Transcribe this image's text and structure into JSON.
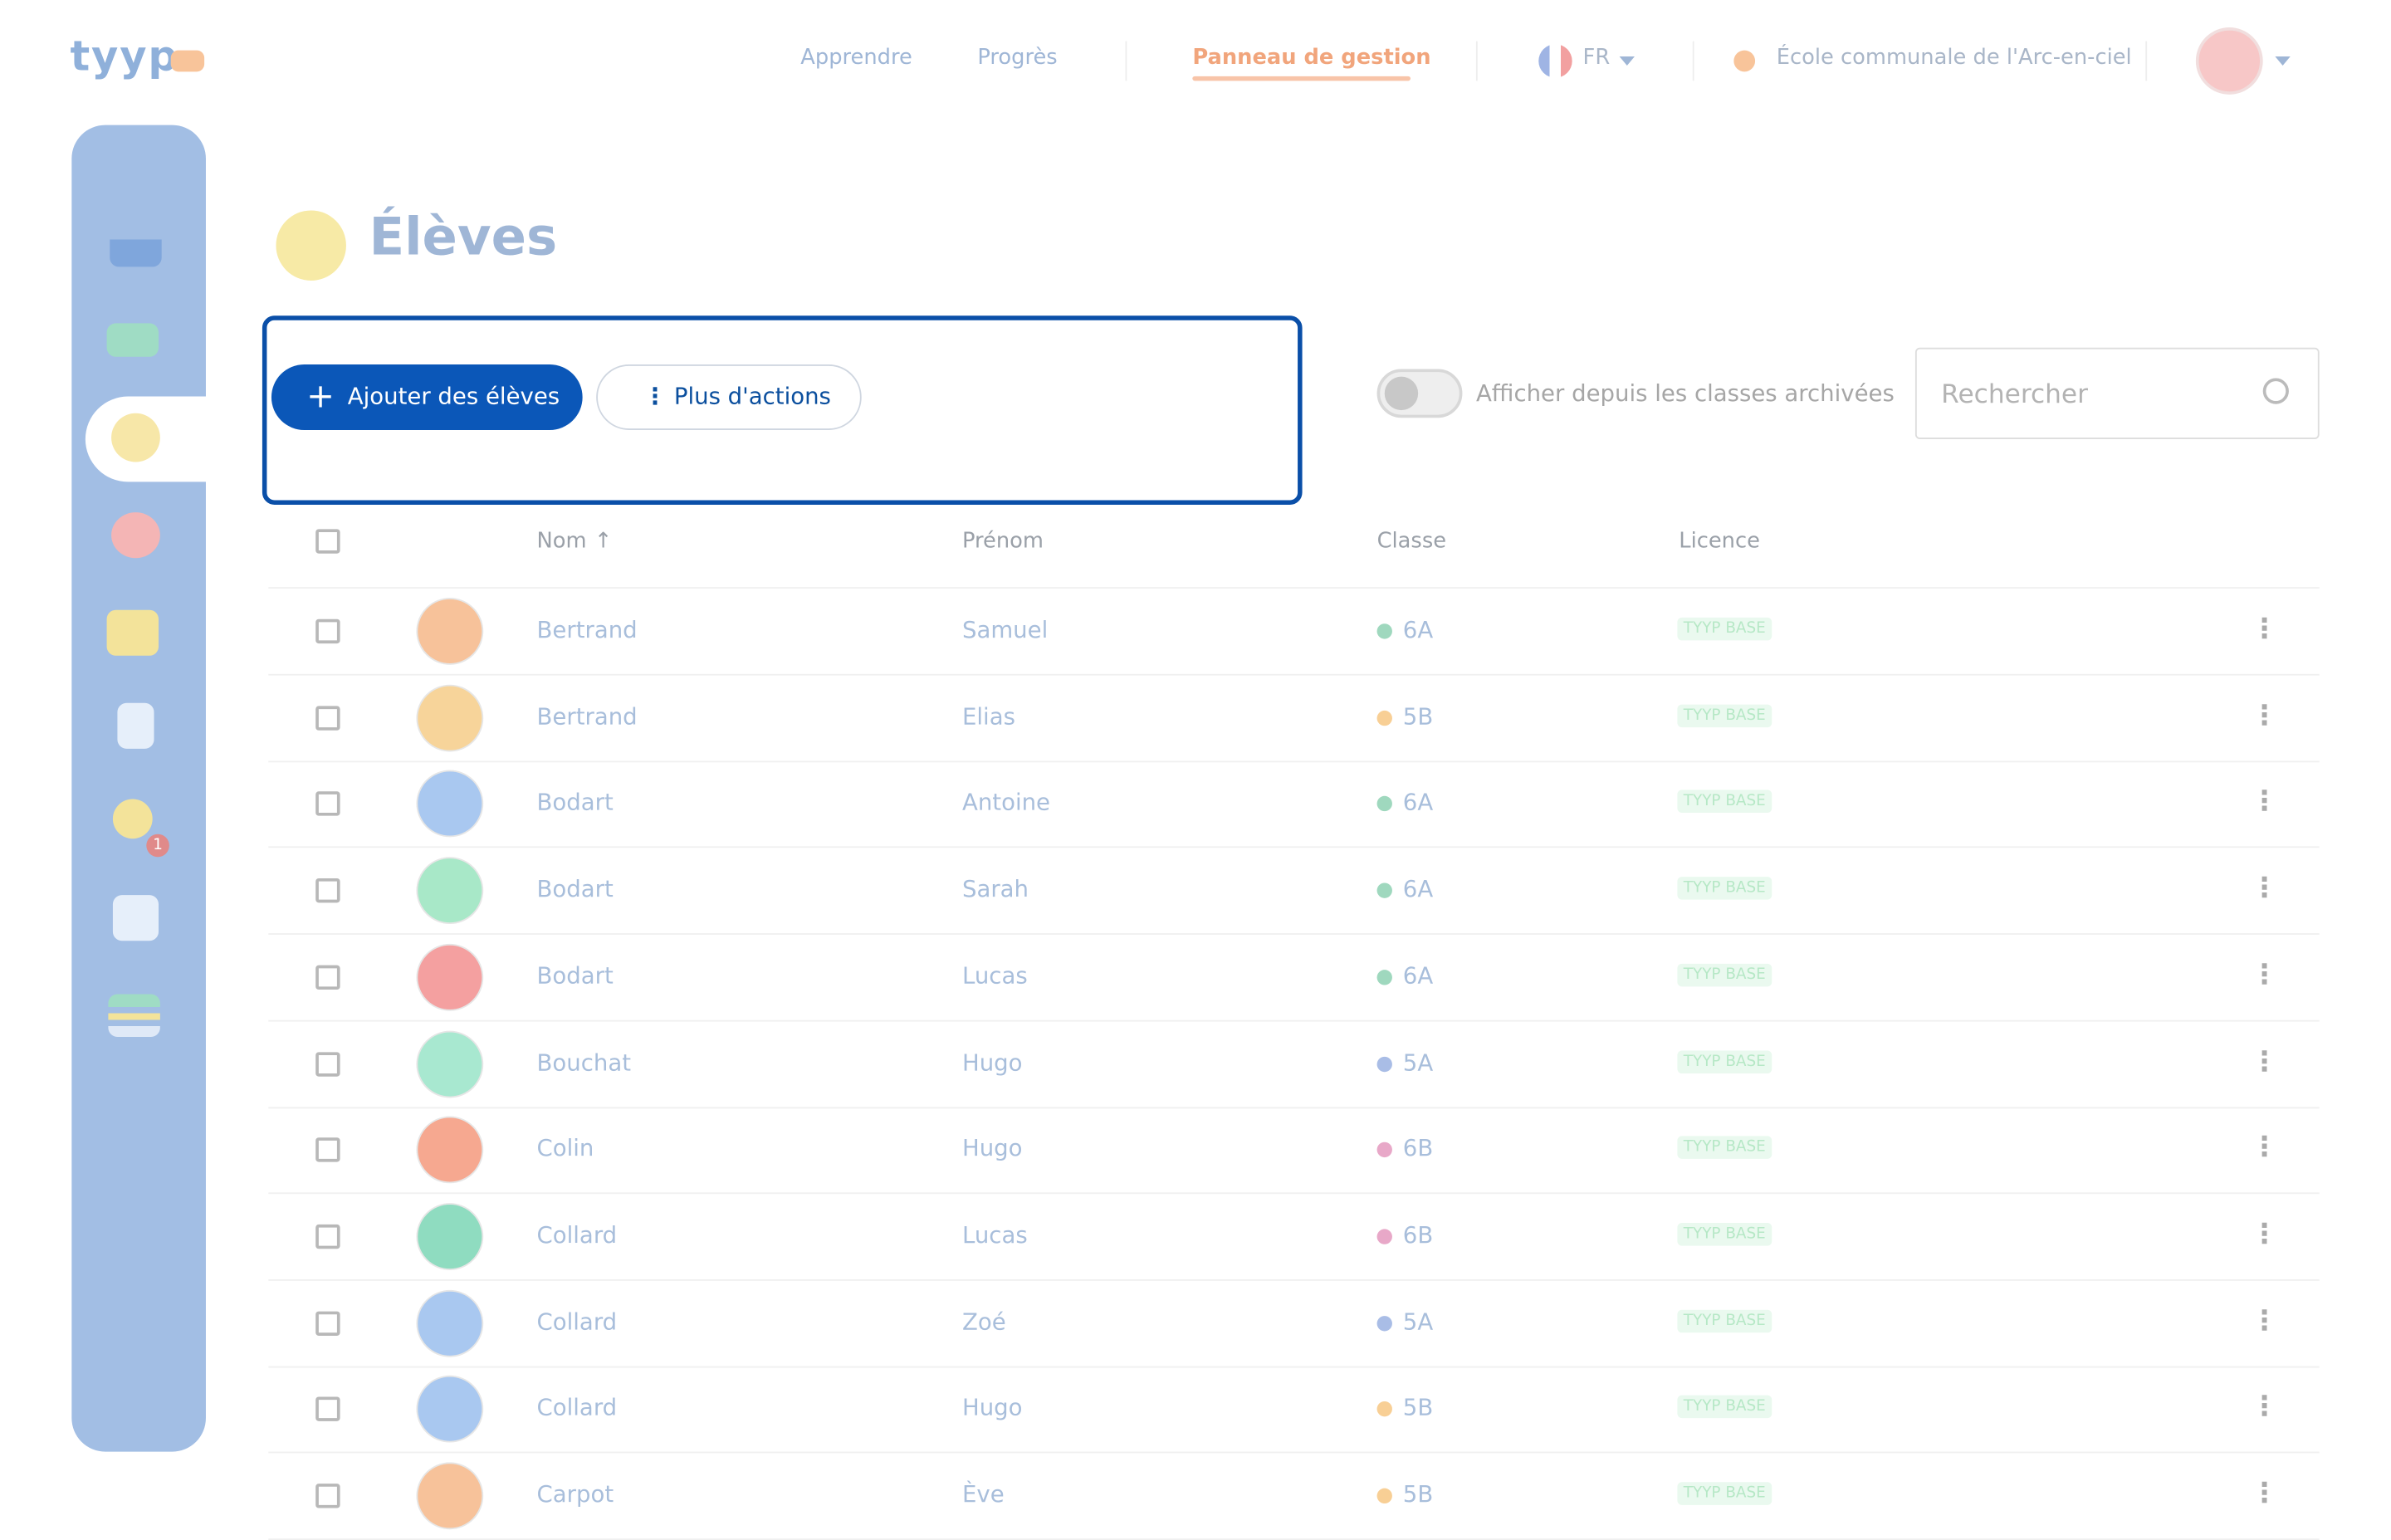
{
  "header": {
    "logo": "tyyp",
    "nav": [
      "Apprendre",
      "Progrès",
      "Panneau de gestion"
    ],
    "language": "FR",
    "school": "École communale de l'Arc-en-ciel"
  },
  "sidebar": {
    "badge": "1"
  },
  "page": {
    "title": "Élèves",
    "add_button": "Ajouter des élèves",
    "more_button": "Plus d'actions",
    "archived_toggle": "Afficher depuis les classes archivées",
    "search_placeholder": "Rechercher"
  },
  "table": {
    "columns": [
      "Nom",
      "Prénom",
      "Classe",
      "Licence"
    ],
    "rows": [
      [
        "Bertrand",
        "Samuel",
        "6A",
        "TYYP BASE"
      ],
      [
        "Bertrand",
        "Elias",
        "5B",
        "TYYP BASE"
      ],
      [
        "Bodart",
        "Antoine",
        "6A",
        "TYYP BASE"
      ],
      [
        "Bodart",
        "Sarah",
        "6A",
        "TYYP BASE"
      ],
      [
        "Bodart",
        "Lucas",
        "6A",
        "TYYP BASE"
      ],
      [
        "Bouchat",
        "Hugo",
        "5A",
        "TYYP BASE"
      ],
      [
        "Colin",
        "Hugo",
        "6B",
        "TYYP BASE"
      ],
      [
        "Collard",
        "Lucas",
        "6B",
        "TYYP BASE"
      ],
      [
        "Collard",
        "Zoé",
        "5A",
        "TYYP BASE"
      ],
      [
        "Collard",
        "Hugo",
        "5B",
        "TYYP BASE"
      ],
      [
        "Carpot",
        "Ève",
        "5B",
        "TYYP BASE"
      ]
    ]
  }
}
